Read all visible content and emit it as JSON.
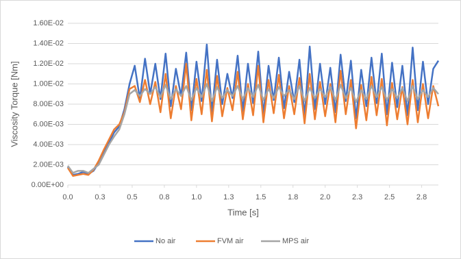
{
  "chart_data": {
    "type": "line",
    "x_label": "Time [s]",
    "y_label": "Viscosity Torque [Nm]",
    "xlim": [
      0,
      2.88
    ],
    "ylim": [
      0,
      0.016
    ],
    "xticks": [
      {
        "value": 0,
        "label": "0.0"
      },
      {
        "value": 0.25,
        "label": "0.3"
      },
      0.5,
      {
        "value": 0.75,
        "label": "0.8"
      },
      {
        "value": 1,
        "label": "1.0"
      },
      {
        "value": 1.25,
        "label": "1.3"
      },
      1.5,
      {
        "value": 1.75,
        "label": "1.8"
      },
      {
        "value": 2,
        "label": "2.0"
      },
      {
        "value": 2.25,
        "label": "2.3"
      },
      2.5,
      {
        "value": 2.75,
        "label": "2.8"
      }
    ],
    "yticks": [
      {
        "value": 0,
        "label": "0.00E+00"
      },
      {
        "value": 0.002,
        "label": "2.00E-03"
      },
      {
        "value": 0.004,
        "label": "4.00E-03"
      },
      {
        "value": 0.006,
        "label": "6.00E-03"
      },
      {
        "value": 0.008,
        "label": "8.00E-03"
      },
      {
        "value": 0.01,
        "label": "1.00E-02"
      },
      {
        "value": 0.012,
        "label": "1.20E-02"
      },
      {
        "value": 0.014,
        "label": "1.40E-02"
      },
      {
        "value": 0.016,
        "label": "1.60E-02"
      }
    ],
    "grid": true,
    "legend": "bottom",
    "x": [
      0,
      0.04,
      0.08,
      0.12,
      0.16,
      0.2,
      0.24,
      0.28,
      0.32,
      0.36,
      0.4,
      0.44,
      0.48,
      0.52,
      0.56,
      0.6,
      0.64,
      0.68,
      0.72,
      0.76,
      0.8,
      0.84,
      0.88,
      0.92,
      0.96,
      1,
      1.04,
      1.08,
      1.12,
      1.16,
      1.2,
      1.24,
      1.28,
      1.32,
      1.36,
      1.4,
      1.44,
      1.48,
      1.52,
      1.56,
      1.6,
      1.64,
      1.68,
      1.72,
      1.76,
      1.8,
      1.84,
      1.88,
      1.92,
      1.96,
      2,
      2.04,
      2.08,
      2.12,
      2.16,
      2.2,
      2.24,
      2.28,
      2.32,
      2.36,
      2.4,
      2.44,
      2.48,
      2.52,
      2.56,
      2.6,
      2.64,
      2.68,
      2.72,
      2.76,
      2.8,
      2.84,
      2.88
    ],
    "series": [
      {
        "name": "No air",
        "color": "#4472c4",
        "values": [
          0.0018,
          0.001,
          0.0011,
          0.0013,
          0.0011,
          0.0014,
          0.0022,
          0.0032,
          0.0042,
          0.0052,
          0.0058,
          0.0075,
          0.01,
          0.0118,
          0.0085,
          0.0125,
          0.009,
          0.012,
          0.0085,
          0.013,
          0.0078,
          0.0115,
          0.0088,
          0.0131,
          0.0074,
          0.0122,
          0.0083,
          0.0139,
          0.0072,
          0.0124,
          0.008,
          0.011,
          0.0086,
          0.0128,
          0.0073,
          0.012,
          0.0081,
          0.0132,
          0.007,
          0.0118,
          0.0084,
          0.0126,
          0.0076,
          0.0112,
          0.0082,
          0.0124,
          0.0068,
          0.0137,
          0.0075,
          0.012,
          0.008,
          0.0116,
          0.0072,
          0.0129,
          0.0083,
          0.0123,
          0.0066,
          0.0114,
          0.0078,
          0.0126,
          0.0081,
          0.013,
          0.007,
          0.0121,
          0.0077,
          0.0118,
          0.0069,
          0.0136,
          0.0074,
          0.0122,
          0.008,
          0.0115,
          0.0123
        ]
      },
      {
        "name": "FVM air",
        "color": "#ed7d31",
        "values": [
          0.0017,
          0.0009,
          0.001,
          0.0011,
          0.001,
          0.0015,
          0.0024,
          0.0035,
          0.0045,
          0.0055,
          0.006,
          0.0072,
          0.0095,
          0.0098,
          0.0082,
          0.0104,
          0.008,
          0.0102,
          0.0072,
          0.011,
          0.0066,
          0.0098,
          0.0075,
          0.012,
          0.0064,
          0.0105,
          0.007,
          0.0114,
          0.0063,
          0.0108,
          0.0068,
          0.0096,
          0.0074,
          0.0112,
          0.0065,
          0.01,
          0.0069,
          0.0118,
          0.0062,
          0.0104,
          0.0071,
          0.0109,
          0.0066,
          0.0098,
          0.007,
          0.0106,
          0.0061,
          0.011,
          0.0065,
          0.0102,
          0.0068,
          0.01,
          0.0062,
          0.0113,
          0.007,
          0.0104,
          0.0056,
          0.0099,
          0.0064,
          0.0107,
          0.0069,
          0.0105,
          0.0059,
          0.0101,
          0.0065,
          0.0097,
          0.006,
          0.0104,
          0.0062,
          0.01,
          0.0066,
          0.0098,
          0.0078
        ]
      },
      {
        "name": "MPS air",
        "color": "#a5a5a5",
        "values": [
          0.0019,
          0.0012,
          0.0014,
          0.0014,
          0.0012,
          0.0016,
          0.002,
          0.003,
          0.004,
          0.0048,
          0.0055,
          0.007,
          0.009,
          0.0094,
          0.0088,
          0.0095,
          0.009,
          0.0097,
          0.0087,
          0.0099,
          0.0085,
          0.0095,
          0.0088,
          0.0098,
          0.0084,
          0.0096,
          0.0087,
          0.01,
          0.0083,
          0.0097,
          0.0086,
          0.0094,
          0.0088,
          0.0098,
          0.0085,
          0.0096,
          0.0087,
          0.0099,
          0.0084,
          0.0095,
          0.0086,
          0.0097,
          0.0088,
          0.0094,
          0.0085,
          0.0098,
          0.0083,
          0.0096,
          0.0086,
          0.0095,
          0.0087,
          0.0097,
          0.0084,
          0.0099,
          0.0086,
          0.0096,
          0.0082,
          0.0094,
          0.0085,
          0.0098,
          0.0087,
          0.0097,
          0.0084,
          0.0095,
          0.0086,
          0.0096,
          0.0083,
          0.0098,
          0.0085,
          0.0094,
          0.0087,
          0.0096,
          0.009
        ]
      }
    ]
  }
}
